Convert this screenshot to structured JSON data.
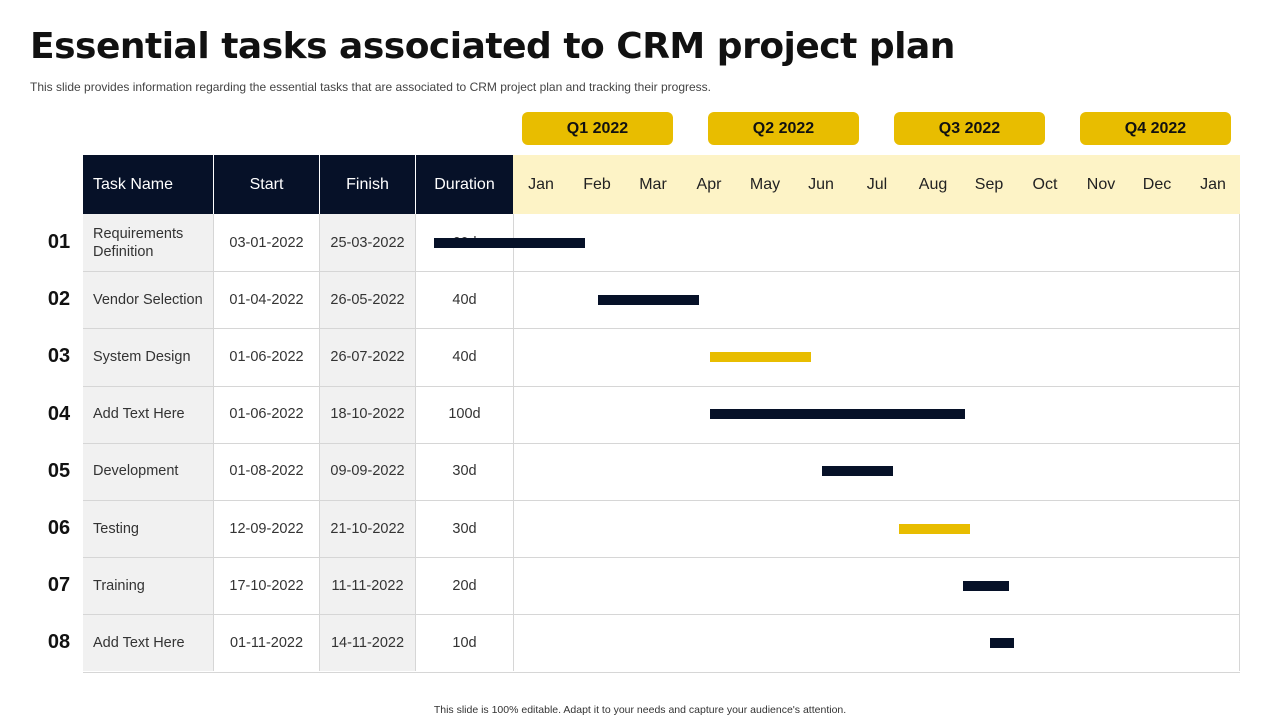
{
  "title": "Essential tasks associated to CRM project plan",
  "subtitle": "This slide provides  information  regarding  the essential tasks that are associated to CRM  project plan and tracking their progress.",
  "footer": "This slide is 100% editable.  Adapt it to your needs and capture your audience's attention.",
  "colors": {
    "dark": "#061128",
    "accent": "#e8bd00",
    "month_band": "#fdf3c6",
    "shade": "#f1f1f1"
  },
  "quarters": [
    "Q1 2022",
    "Q2 2022",
    "Q3 2022",
    "Q4 2022"
  ],
  "headers": {
    "task": "Task Name",
    "start": "Start",
    "finish": "Finish",
    "duration": "Duration"
  },
  "months": [
    "Jan",
    "Feb",
    "Mar",
    "Apr",
    "May",
    "Jun",
    "Jul",
    "Aug",
    "Sep",
    "Oct",
    "Nov",
    "Dec",
    "Jan"
  ],
  "chart_data": {
    "type": "gantt",
    "title": "Essential tasks associated to CRM project plan",
    "x_axis": "months Jan 2022 – Jan 2023",
    "tasks": [
      {
        "num": "01",
        "name": "Requirements Definition",
        "start": "03-01-2022",
        "finish": "25-03-2022",
        "duration": "60d",
        "color": "dark"
      },
      {
        "num": "02",
        "name": "Vendor Selection",
        "start": "01-04-2022",
        "finish": "26-05-2022",
        "duration": "40d",
        "color": "dark"
      },
      {
        "num": "03",
        "name": "System Design",
        "start": "01-06-2022",
        "finish": "26-07-2022",
        "duration": "40d",
        "color": "accent"
      },
      {
        "num": "04",
        "name": "Add Text Here",
        "start": "01-06-2022",
        "finish": "18-10-2022",
        "duration": "100d",
        "color": "dark"
      },
      {
        "num": "05",
        "name": "Development",
        "start": "01-08-2022",
        "finish": "09-09-2022",
        "duration": "30d",
        "color": "dark"
      },
      {
        "num": "06",
        "name": "Testing",
        "start": "12-09-2022",
        "finish": "21-10-2022",
        "duration": "30d",
        "color": "accent"
      },
      {
        "num": "07",
        "name": "Training",
        "start": "17-10-2022",
        "finish": "11-11-2022",
        "duration": "20d",
        "color": "dark"
      },
      {
        "num": "08",
        "name": "Add Text Here",
        "start": "01-11-2022",
        "finish": "14-11-2022",
        "duration": "10d",
        "color": "dark"
      }
    ]
  }
}
